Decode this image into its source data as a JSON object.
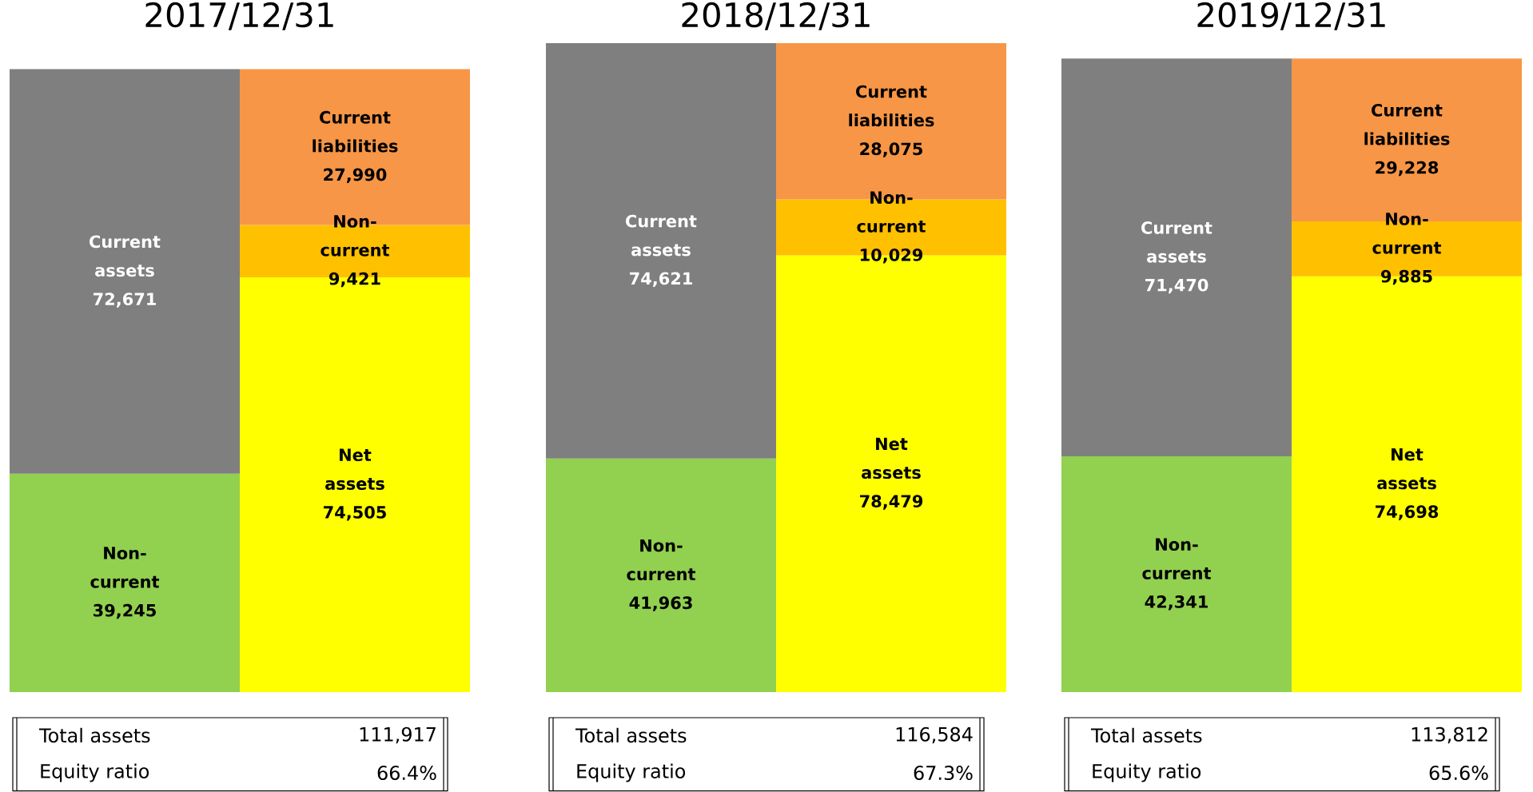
{
  "chart_data": [
    {
      "type": "bar",
      "title": "2017/12/31",
      "stacked": true,
      "categories": [
        null,
        null
      ],
      "tick_labels": false,
      "series": [
        {
          "name": "Non-current",
          "color": "#92d050",
          "values": [
            39245,
            null
          ],
          "value_labels": [
            "39,245",
            null
          ]
        },
        {
          "name": "Current assets",
          "color": "#7f7f7f",
          "values": [
            72671,
            null
          ],
          "value_labels": [
            "72,671",
            null
          ]
        },
        {
          "name": "Net assets",
          "color": "#ffff00",
          "values": [
            null,
            74505
          ],
          "value_labels": [
            null,
            "74,505"
          ]
        },
        {
          "name": "Non-current",
          "color": "#ffc000",
          "values": [
            null,
            9421
          ],
          "value_labels": [
            null,
            "9,421"
          ]
        },
        {
          "name": "Current liabilities",
          "color": "#f79646",
          "values": [
            null,
            27990
          ],
          "value_labels": [
            null,
            "27,990"
          ]
        }
      ],
      "annotations": [
        "Total assets",
        "111,917",
        "Equity ratio",
        "66.4%"
      ]
    },
    {
      "type": "bar",
      "title": "2018/12/31",
      "stacked": true,
      "categories": [
        null,
        null
      ],
      "tick_labels": false,
      "series": [
        {
          "name": "Non-current",
          "color": "#92d050",
          "values": [
            41963,
            null
          ],
          "value_labels": [
            "41,963",
            null
          ]
        },
        {
          "name": "Current assets",
          "color": "#7f7f7f",
          "values": [
            74621,
            null
          ],
          "value_labels": [
            "74,621",
            null
          ]
        },
        {
          "name": "Net assets",
          "color": "#ffff00",
          "values": [
            null,
            78479
          ],
          "value_labels": [
            null,
            "78,479"
          ]
        },
        {
          "name": "Non-current",
          "color": "#ffc000",
          "values": [
            null,
            10029
          ],
          "value_labels": [
            null,
            "10,029"
          ]
        },
        {
          "name": "Current liabilities",
          "color": "#f79646",
          "values": [
            null,
            28075
          ],
          "value_labels": [
            null,
            "28,075"
          ]
        }
      ],
      "annotations": [
        "Total assets",
        "116,584",
        "Equity ratio",
        "67.3%"
      ]
    },
    {
      "type": "bar",
      "title": "2019/12/31",
      "stacked": true,
      "categories": [
        null,
        null
      ],
      "tick_labels": false,
      "series": [
        {
          "name": "Non-current",
          "color": "#92d050",
          "values": [
            42341,
            null
          ],
          "value_labels": [
            "42,341",
            null
          ]
        },
        {
          "name": "Current assets",
          "color": "#7f7f7f",
          "values": [
            71470,
            null
          ],
          "value_labels": [
            "71,470",
            null
          ]
        },
        {
          "name": "Net assets",
          "color": "#ffff00",
          "values": [
            null,
            74698
          ],
          "value_labels": [
            null,
            "74,698"
          ]
        },
        {
          "name": "Non-current",
          "color": "#ffc000",
          "values": [
            null,
            9885
          ],
          "value_labels": [
            null,
            "9,885"
          ]
        },
        {
          "name": "Current liabilities",
          "color": "#f79646",
          "values": [
            null,
            29228
          ],
          "value_labels": [
            null,
            "29,228"
          ]
        }
      ],
      "annotations": [
        "Total assets",
        "113,812",
        "Equity ratio",
        "65.6%"
      ]
    }
  ]
}
